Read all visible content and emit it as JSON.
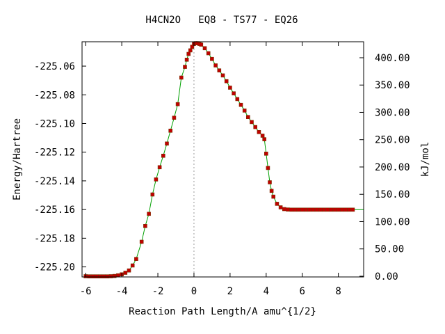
{
  "chart_data": {
    "type": "line",
    "title": "H4CN2O   EQ8 - TS77 - EQ26",
    "xlabel": "Reaction Path Length/A amu^{1/2}",
    "ylabel": "Energy/Hartree",
    "y2label": "kJ/mol",
    "xlim": [
      -6.2,
      9.4
    ],
    "ylim": [
      -225.207,
      -225.043
    ],
    "xticks": [
      -6,
      -4,
      -2,
      0,
      2,
      4,
      6,
      8
    ],
    "xtick_labels": [
      "-6",
      "-4",
      "-2",
      "0",
      "2",
      "4",
      "6",
      "8"
    ],
    "yticks": [
      -225.2,
      -225.18,
      -225.16,
      -225.14,
      -225.12,
      -225.1,
      -225.08,
      -225.06
    ],
    "ytick_labels": [
      "-225.20",
      "-225.18",
      "-225.16",
      "-225.14",
      "-225.12",
      "-225.10",
      "-225.08",
      "-225.06"
    ],
    "y2_zero_hartree": -225.2065,
    "y2_kj_per_hartree": 2625.5,
    "y2ticks": [
      0,
      50,
      100,
      150,
      200,
      250,
      300,
      350,
      400
    ],
    "y2tick_labels": [
      "0.00",
      "50.00",
      "100.00",
      "150.00",
      "200.00",
      "250.00",
      "300.00",
      "350.00",
      "400.00"
    ],
    "ts_marker_x": 0,
    "grid": false,
    "line_color": "#00a000",
    "marker_color": "#c00000",
    "series": [
      {
        "x": [
          -6.0,
          -5.8,
          -5.6,
          -5.4,
          -5.2,
          -5.0,
          -4.8,
          -4.6,
          -4.4,
          -4.2,
          -4.0,
          -3.8,
          -3.6,
          -3.4,
          -3.2,
          -2.9,
          -2.7,
          -2.5,
          -2.3,
          -2.1,
          -1.9,
          -1.7,
          -1.5,
          -1.3,
          -1.1,
          -0.9,
          -0.7,
          -0.5,
          -0.4,
          -0.3,
          -0.2,
          -0.1,
          0.0,
          0.1,
          0.2,
          0.3,
          0.4,
          0.6,
          0.8,
          1.0,
          1.2,
          1.4,
          1.6,
          1.8,
          2.0,
          2.2,
          2.4,
          2.6,
          2.8,
          3.0,
          3.2,
          3.4,
          3.6,
          3.8,
          3.9,
          4.0,
          4.1,
          4.2,
          4.3,
          4.4,
          4.6,
          4.8,
          5.0,
          5.2,
          5.4,
          5.6,
          5.8,
          6.0,
          6.2,
          6.4,
          6.6,
          6.8,
          7.0,
          7.2,
          7.4,
          7.6,
          7.8,
          8.0,
          8.2,
          8.4,
          8.6,
          8.8
        ],
        "y": [
          -225.2065,
          -225.2066,
          -225.2066,
          -225.2066,
          -225.2066,
          -225.2066,
          -225.2066,
          -225.2065,
          -225.2063,
          -225.2059,
          -225.2052,
          -225.2041,
          -225.2025,
          -225.199,
          -225.1945,
          -225.1825,
          -225.1715,
          -225.163,
          -225.1495,
          -225.139,
          -225.1305,
          -225.1225,
          -225.114,
          -225.105,
          -225.096,
          -225.0865,
          -225.068,
          -225.0605,
          -225.0555,
          -225.0515,
          -225.049,
          -225.0465,
          -225.0445,
          -225.044,
          -225.044,
          -225.0445,
          -225.045,
          -225.0475,
          -225.051,
          -225.055,
          -225.0595,
          -225.063,
          -225.0665,
          -225.0705,
          -225.075,
          -225.079,
          -225.083,
          -225.087,
          -225.091,
          -225.0955,
          -225.099,
          -225.1025,
          -225.106,
          -225.1085,
          -225.111,
          -225.121,
          -225.131,
          -225.141,
          -225.147,
          -225.151,
          -225.156,
          -225.1585,
          -225.1597,
          -225.16,
          -225.1601,
          -225.1601,
          -225.1601,
          -225.1601,
          -225.1601,
          -225.1601,
          -225.1601,
          -225.1601,
          -225.1601,
          -225.1601,
          -225.1601,
          -225.1601,
          -225.1601,
          -225.1601,
          -225.1601,
          -225.1601,
          -225.1601,
          -225.1601
        ]
      }
    ]
  }
}
